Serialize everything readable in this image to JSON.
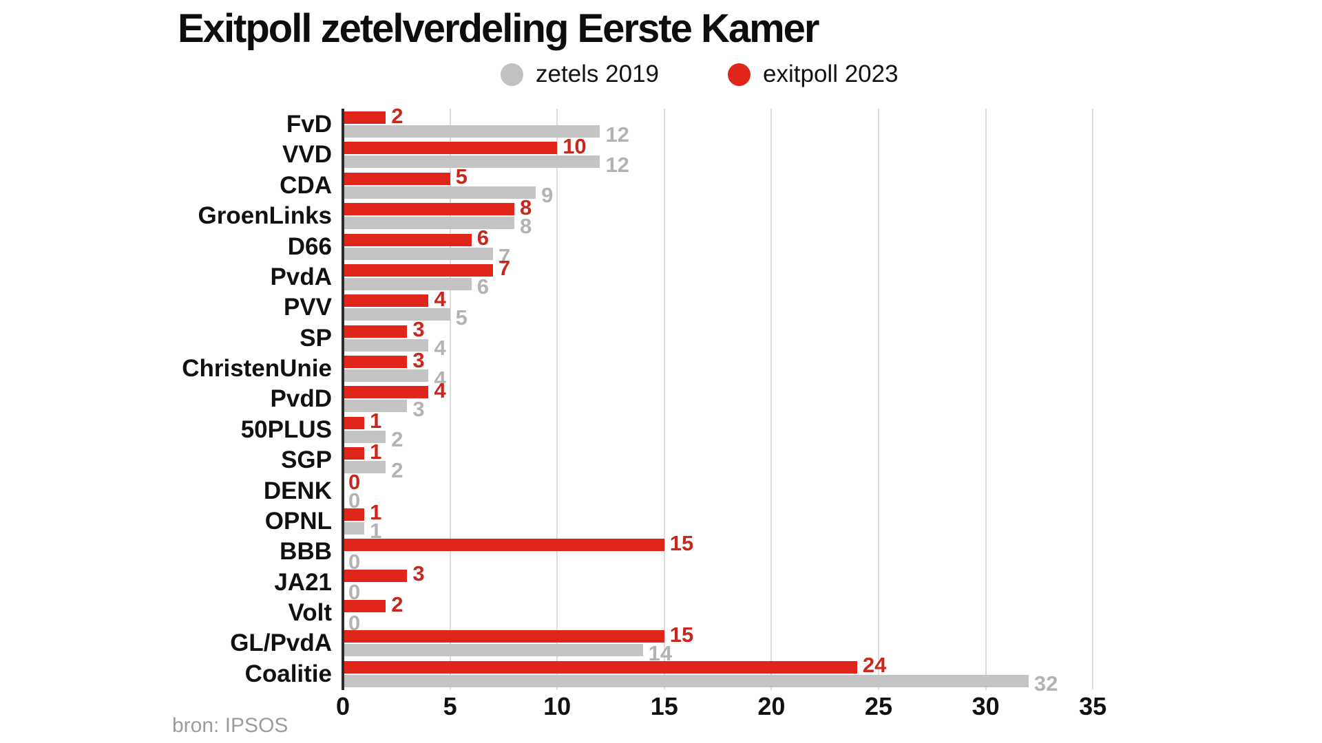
{
  "title": "Exitpoll zetelverdeling Eerste Kamer",
  "source": "bron: IPSOS",
  "legend": [
    {
      "label": "zetels 2019",
      "color": "#c1c1c1"
    },
    {
      "label": "exitpoll 2023",
      "color": "#e0261b"
    }
  ],
  "colors": {
    "bar_red": "#e0261b",
    "bar_gray": "#c4c4c4",
    "label_red": "#c9261d",
    "label_gray": "#b3b3b3",
    "axis_line": "#2b2b2b",
    "gridline": "#dcdcdc",
    "text": "#111111",
    "source_text": "#9c9c9c"
  },
  "chart_data": {
    "type": "bar",
    "orientation": "horizontal",
    "title": "Exitpoll zetelverdeling Eerste Kamer",
    "xlabel": "",
    "ylabel": "",
    "xlim": [
      0,
      35
    ],
    "xticks": [
      0,
      5,
      10,
      15,
      20,
      25,
      30,
      35
    ],
    "grid": true,
    "legend_position": "top",
    "legend_order": [
      "zetels 2019",
      "exitpoll 2023"
    ],
    "categories": [
      "FvD",
      "VVD",
      "CDA",
      "GroenLinks",
      "D66",
      "PvdA",
      "PVV",
      "SP",
      "ChristenUnie",
      "PvdD",
      "50PLUS",
      "SGP",
      "DENK",
      "OPNL",
      "BBB",
      "JA21",
      "Volt",
      "GL/PvdA",
      "Coalitie"
    ],
    "series": [
      {
        "name": "exitpoll 2023",
        "color": "#e0261b",
        "label_color": "#c9261d",
        "values": [
          2,
          10,
          5,
          8,
          6,
          7,
          4,
          3,
          3,
          4,
          1,
          1,
          0,
          1,
          15,
          3,
          2,
          15,
          24
        ]
      },
      {
        "name": "zetels 2019",
        "color": "#c4c4c4",
        "label_color": "#b3b3b3",
        "values": [
          12,
          12,
          9,
          8,
          7,
          6,
          5,
          4,
          4,
          3,
          2,
          2,
          0,
          1,
          0,
          0,
          0,
          14,
          32
        ]
      }
    ]
  }
}
